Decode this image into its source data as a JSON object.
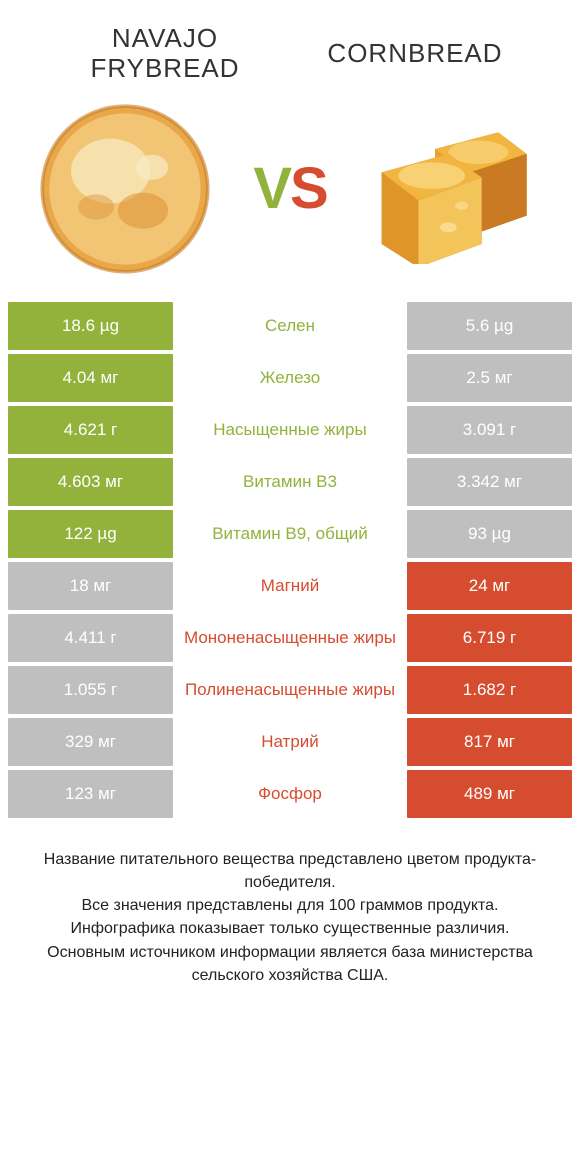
{
  "colors": {
    "left": "#93b23c",
    "right": "#d64c2f",
    "neutral": "#bfbfbf",
    "label_left_wins": "#93b23c",
    "label_right_wins": "#d64c2f"
  },
  "header": {
    "left_title": "NAVAJO FRYBREAD",
    "right_title": "CORNBREAD",
    "vs_v": "V",
    "vs_s": "S"
  },
  "rows": [
    {
      "label": "Селен",
      "left": "18.6 µg",
      "right": "5.6 µg",
      "winner": "left"
    },
    {
      "label": "Железо",
      "left": "4.04 мг",
      "right": "2.5 мг",
      "winner": "left"
    },
    {
      "label": "Насыщенные жиры",
      "left": "4.621 г",
      "right": "3.091 г",
      "winner": "left"
    },
    {
      "label": "Витамин B3",
      "left": "4.603 мг",
      "right": "3.342 мг",
      "winner": "left"
    },
    {
      "label": "Витамин B9, общий",
      "left": "122 µg",
      "right": "93 µg",
      "winner": "left"
    },
    {
      "label": "Магний",
      "left": "18 мг",
      "right": "24 мг",
      "winner": "right"
    },
    {
      "label": "Мононенасыщенные жиры",
      "left": "4.411 г",
      "right": "6.719 г",
      "winner": "right"
    },
    {
      "label": "Полиненасыщенные жиры",
      "left": "1.055 г",
      "right": "1.682 г",
      "winner": "right"
    },
    {
      "label": "Натрий",
      "left": "329 мг",
      "right": "817 мг",
      "winner": "right"
    },
    {
      "label": "Фосфор",
      "left": "123 мг",
      "right": "489 мг",
      "winner": "right"
    }
  ],
  "footer": {
    "line1": "Название питательного вещества представлено цветом продукта-победителя.",
    "line2": "Все значения представлены для 100 граммов продукта.",
    "line3": "Инфографика показывает только существенные различия.",
    "line4": "Основным источником информации является база министерства сельского хозяйства США."
  }
}
